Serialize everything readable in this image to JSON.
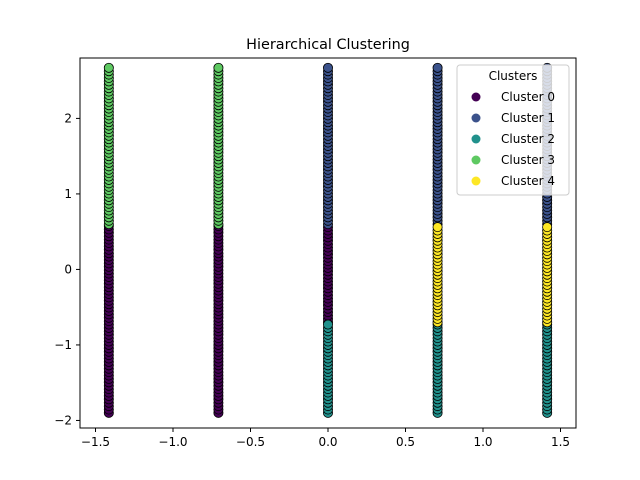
{
  "chart_data": {
    "type": "scatter",
    "title": "Hierarchical Clustering",
    "xlabel": "",
    "ylabel": "",
    "xlim": [
      -1.6,
      1.6
    ],
    "ylim": [
      -2.1,
      2.8
    ],
    "xticks": [
      {
        "value": -1.5,
        "label": "−1.5"
      },
      {
        "value": -1.0,
        "label": "−1.0"
      },
      {
        "value": -0.5,
        "label": "−0.5"
      },
      {
        "value": 0.0,
        "label": "0.0"
      },
      {
        "value": 0.5,
        "label": "0.5"
      },
      {
        "value": 1.0,
        "label": "1.0"
      },
      {
        "value": 1.5,
        "label": "1.5"
      }
    ],
    "yticks": [
      {
        "value": -2,
        "label": "−2"
      },
      {
        "value": -1,
        "label": "−1"
      },
      {
        "value": 0,
        "label": "0"
      },
      {
        "value": 1,
        "label": "1"
      },
      {
        "value": 2,
        "label": "2"
      }
    ],
    "grid": false,
    "legend": {
      "title": "Clusters",
      "placement": "top-right"
    },
    "series": [
      {
        "name": "Cluster 0",
        "color": "#440154",
        "segments": [
          {
            "x": -1.414,
            "y_from": -1.9,
            "y_to": 0.6
          },
          {
            "x": -0.707,
            "y_from": -1.9,
            "y_to": 0.6
          },
          {
            "x": 0.0,
            "y_from": -0.7,
            "y_to": 0.6
          }
        ]
      },
      {
        "name": "Cluster 1",
        "color": "#3b528b",
        "segments": [
          {
            "x": 0.0,
            "y_from": 0.6,
            "y_to": 2.67
          },
          {
            "x": 0.707,
            "y_from": 0.6,
            "y_to": 2.67
          },
          {
            "x": 1.414,
            "y_from": 0.6,
            "y_to": 2.67
          }
        ]
      },
      {
        "name": "Cluster 2",
        "color": "#21918c",
        "segments": [
          {
            "x": 0.0,
            "y_from": -1.9,
            "y_to": -0.7
          },
          {
            "x": 0.707,
            "y_from": -1.9,
            "y_to": -0.7
          },
          {
            "x": 1.414,
            "y_from": -1.9,
            "y_to": -0.7
          }
        ]
      },
      {
        "name": "Cluster 3",
        "color": "#5ec962",
        "segments": [
          {
            "x": -1.414,
            "y_from": 0.6,
            "y_to": 2.67
          },
          {
            "x": -0.707,
            "y_from": 0.6,
            "y_to": 2.67
          }
        ]
      },
      {
        "name": "Cluster 4",
        "color": "#fde725",
        "segments": [
          {
            "x": 0.707,
            "y_from": -0.7,
            "y_to": 0.6
          },
          {
            "x": 1.414,
            "y_from": -0.7,
            "y_to": 0.6
          }
        ]
      }
    ]
  }
}
